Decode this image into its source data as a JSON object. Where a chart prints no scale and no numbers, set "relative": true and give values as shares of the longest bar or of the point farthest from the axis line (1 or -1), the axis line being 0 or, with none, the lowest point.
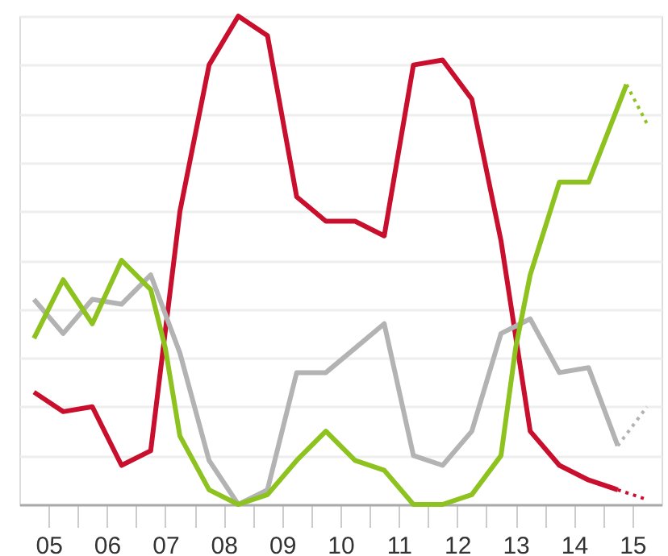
{
  "chart_data": {
    "type": "line",
    "relative": true,
    "grid": "y",
    "xlim": [
      5,
      16
    ],
    "xticks": [
      {
        "value": 5.5,
        "label": "05"
      },
      {
        "value": 6,
        "label": null
      },
      {
        "value": 6.5,
        "label": "06"
      },
      {
        "value": 7,
        "label": null
      },
      {
        "value": 7.5,
        "label": "07"
      },
      {
        "value": 8,
        "label": null
      },
      {
        "value": 8.5,
        "label": "08"
      },
      {
        "value": 9,
        "label": null
      },
      {
        "value": 9.5,
        "label": "09"
      },
      {
        "value": 10,
        "label": null
      },
      {
        "value": 10.5,
        "label": "10"
      },
      {
        "value": 11,
        "label": null
      },
      {
        "value": 11.5,
        "label": "11"
      },
      {
        "value": 12,
        "label": null
      },
      {
        "value": 12.5,
        "label": "12"
      },
      {
        "value": 13,
        "label": null
      },
      {
        "value": 13.5,
        "label": "13"
      },
      {
        "value": 14,
        "label": null
      },
      {
        "value": 14.5,
        "label": "14"
      },
      {
        "value": 15,
        "label": null
      },
      {
        "value": 15.5,
        "label": "15"
      }
    ],
    "series": [
      {
        "color": "#c8102e",
        "line_style": "solid",
        "x": [
          5.25,
          5.75,
          6.25,
          6.75,
          7.25,
          7.75,
          8.25,
          8.75,
          9.25,
          9.75,
          10.25,
          10.75,
          11.25,
          11.75,
          12.25,
          12.75,
          13.25,
          13.75,
          14.25,
          14.75,
          15.25
        ],
        "values": [
          0.23,
          0.19,
          0.2,
          0.08,
          0.11,
          0.6,
          0.9,
          1.0,
          0.96,
          0.63,
          0.58,
          0.58,
          0.55,
          0.9,
          0.91,
          0.83,
          0.54,
          0.15,
          0.08,
          0.05,
          0.03
        ]
      },
      {
        "color": "#c8102e",
        "line_style": "dotted",
        "x": [
          15.25,
          15.75
        ],
        "values": [
          0.03,
          0.01
        ]
      },
      {
        "color": "#b3b3b3",
        "line_style": "solid",
        "x": [
          5.25,
          5.75,
          6.25,
          6.75,
          7.25,
          7.75,
          8.25,
          8.75,
          9.25,
          9.75,
          10.25,
          10.75,
          11.25,
          11.75,
          12.25,
          12.75,
          13.25,
          13.75,
          14.25,
          14.75,
          15.25
        ],
        "values": [
          0.42,
          0.35,
          0.42,
          0.41,
          0.47,
          0.31,
          0.09,
          0.0,
          0.03,
          0.27,
          0.27,
          0.32,
          0.37,
          0.1,
          0.08,
          0.15,
          0.35,
          0.38,
          0.27,
          0.28,
          0.12
        ]
      },
      {
        "color": "#b3b3b3",
        "line_style": "dotted",
        "x": [
          15.25,
          15.75
        ],
        "values": [
          0.12,
          0.2
        ]
      },
      {
        "color": "#8dc21f",
        "line_style": "solid",
        "x": [
          5.25,
          5.75,
          6.25,
          6.75,
          7.25,
          7.5,
          7.75,
          8.25,
          8.75,
          9.25,
          9.75,
          10.25,
          10.75,
          11.25,
          11.75,
          12.25,
          12.75,
          13.25,
          13.5,
          13.75,
          14.25,
          14.75,
          15.4
        ],
        "values": [
          0.34,
          0.46,
          0.37,
          0.5,
          0.44,
          0.32,
          0.14,
          0.03,
          0.0,
          0.02,
          0.09,
          0.15,
          0.09,
          0.07,
          0.0,
          0.0,
          0.02,
          0.1,
          0.32,
          0.47,
          0.66,
          0.66,
          0.86
        ]
      },
      {
        "color": "#8dc21f",
        "line_style": "dotted",
        "x": [
          15.4,
          15.75
        ],
        "values": [
          0.86,
          0.78
        ]
      }
    ]
  }
}
